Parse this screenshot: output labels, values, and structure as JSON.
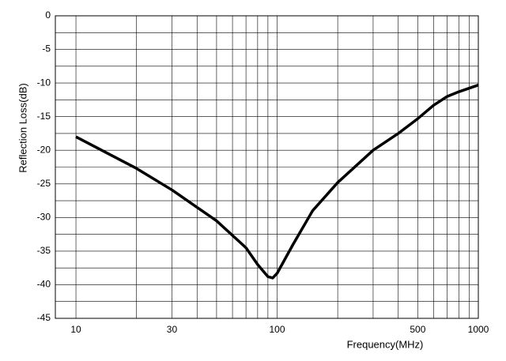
{
  "chart_data": {
    "type": "line",
    "y_label": "Reflection Loss(dB)",
    "x_label": "Frequency(MHz)",
    "x_log": true,
    "grid": true,
    "xlim": [
      7.9,
      1000
    ],
    "ylim": [
      -45,
      0
    ],
    "xticks": [
      10,
      30,
      100,
      500,
      1000
    ],
    "x_minor_grid": [
      20,
      40,
      50,
      60,
      70,
      80,
      90,
      200,
      300,
      400,
      600,
      700,
      800,
      900
    ],
    "yticks": [
      0,
      -5,
      -10,
      -15,
      -20,
      -25,
      -30,
      -35,
      -40,
      -45
    ],
    "y_minor_grid": [
      -2.5,
      -7.5,
      -12.5,
      -17.5,
      -22.5,
      -27.5,
      -32.5,
      -37.5,
      -42.5
    ],
    "x": [
      10,
      20,
      30,
      50,
      70,
      80,
      90,
      95,
      100,
      120,
      150,
      200,
      300,
      400,
      500,
      600,
      700,
      800,
      1000
    ],
    "series": [
      {
        "color": "#000000",
        "values": [
          -18,
          -22.7,
          -25.9,
          -30.5,
          -34.5,
          -37,
          -38.8,
          -39,
          -38.3,
          -34,
          -29,
          -24.8,
          -20,
          -17.5,
          -15.3,
          -13.3,
          -12,
          -11.3,
          -10.3
        ]
      }
    ]
  }
}
